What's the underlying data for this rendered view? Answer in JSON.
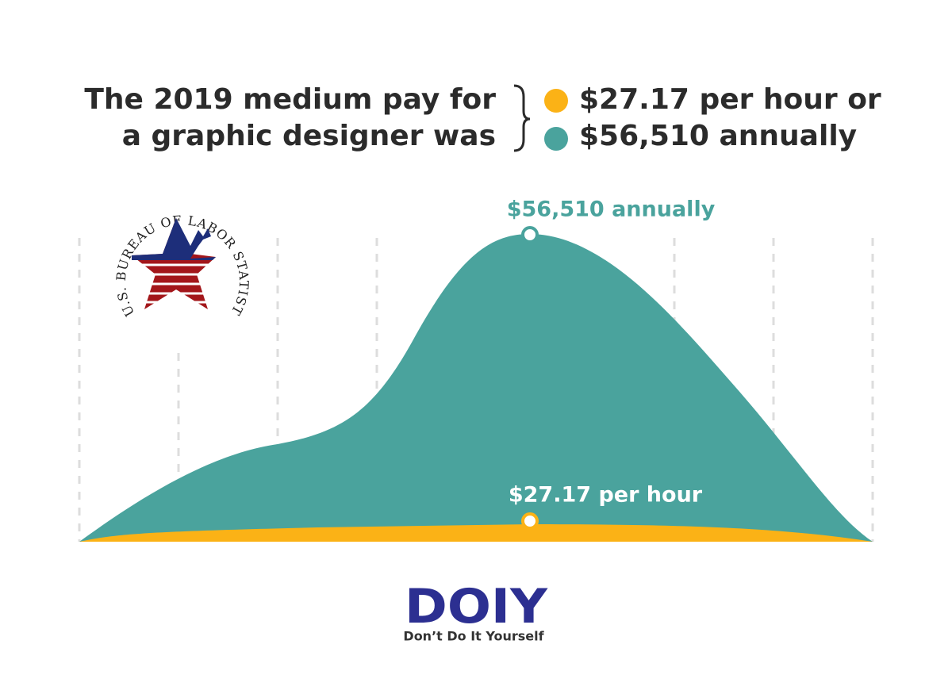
{
  "headline": {
    "left": [
      "The 2019 medium pay for",
      "a graphic designer was"
    ],
    "right": [
      "$27.17 per hour or",
      "$56,510 annually"
    ]
  },
  "labels": {
    "annual": "$56,510 annually",
    "hourly": "$27.17 per hour"
  },
  "bls_logo": "U.S. BUREAU OF LABOR STATISTICS",
  "brand": {
    "logo": "DOIY",
    "tagline": "Don’t Do It Yourself"
  }
}
